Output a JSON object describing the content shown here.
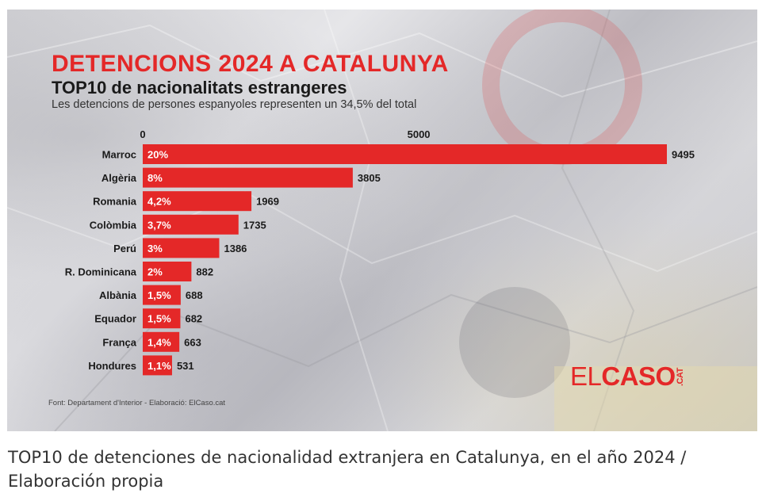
{
  "chart_data": {
    "type": "bar",
    "orientation": "horizontal",
    "title": "DETENCIONS 2024 A CATALUNYA",
    "subtitle": "TOP10 de nacionalitats estrangeres",
    "note": "Les detencions de persones espanyoles representen un 34,5% del total",
    "source": "Font: Departament d'Interior - Elaboració: ElCaso.cat",
    "categories": [
      "Marroc",
      "Algèria",
      "Romania",
      "Colòmbia",
      "Perú",
      "R. Dominicana",
      "Albània",
      "Equador",
      "França",
      "Hondures"
    ],
    "values": [
      9495,
      3805,
      1969,
      1735,
      1386,
      882,
      688,
      682,
      663,
      531
    ],
    "percent_labels": [
      "20%",
      "8%",
      "4,2%",
      "3,7%",
      "3%",
      "2%",
      "1,5%",
      "1,5%",
      "1,4%",
      "1,1%"
    ],
    "x_ticks": [
      "0",
      "5000"
    ],
    "xlim": [
      0,
      9495
    ],
    "grid": false,
    "colors": {
      "bar": "#e42828",
      "title": "#e42828",
      "text": "#1a1a1a"
    }
  },
  "brand": {
    "el": "EL",
    "caso": "CASO",
    "cat": ".CAT"
  },
  "caption": "TOP10 de detenciones de nacionalidad extranjera en Catalunya, en el año 2024 / Elaboración propia"
}
